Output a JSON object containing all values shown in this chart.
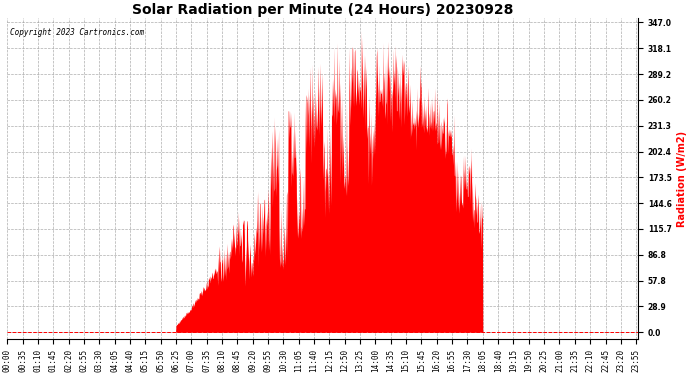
{
  "title": "Solar Radiation per Minute (24 Hours) 20230928",
  "copyright_text": "Copyright 2023 Cartronics.com",
  "ylabel": "Radiation (W/m2)",
  "ylabel_color": "#ff0000",
  "background_color": "#ffffff",
  "fill_color": "#ff0000",
  "line_color": "#ff0000",
  "grid_color": "#999999",
  "yticks": [
    0.0,
    28.9,
    57.8,
    86.8,
    115.7,
    144.6,
    173.5,
    202.4,
    231.3,
    260.2,
    289.2,
    318.1,
    347.0
  ],
  "ymax": 347.0,
  "ymin": 0.0,
  "title_fontsize": 10,
  "tick_fontsize": 5.5,
  "ylabel_fontsize": 7
}
